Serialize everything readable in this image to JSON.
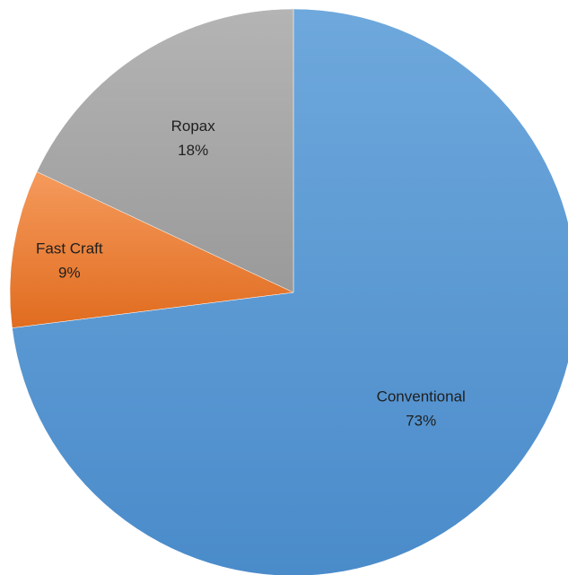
{
  "chart_data": {
    "type": "pie",
    "title": "",
    "slices": [
      {
        "label": "Conventional",
        "value": 73,
        "value_label": "73%",
        "color": "#5b9bd5"
      },
      {
        "label": "Fast Craft",
        "value": 9,
        "value_label": "9%",
        "color": "#ed7d31"
      },
      {
        "label": "Ropax",
        "value": 18,
        "value_label": "18%",
        "color": "#a5a5a5"
      }
    ],
    "start": "12 o'clock",
    "direction": "clockwise",
    "legend": "none",
    "data_labels": "category name and percentage inside slices"
  }
}
